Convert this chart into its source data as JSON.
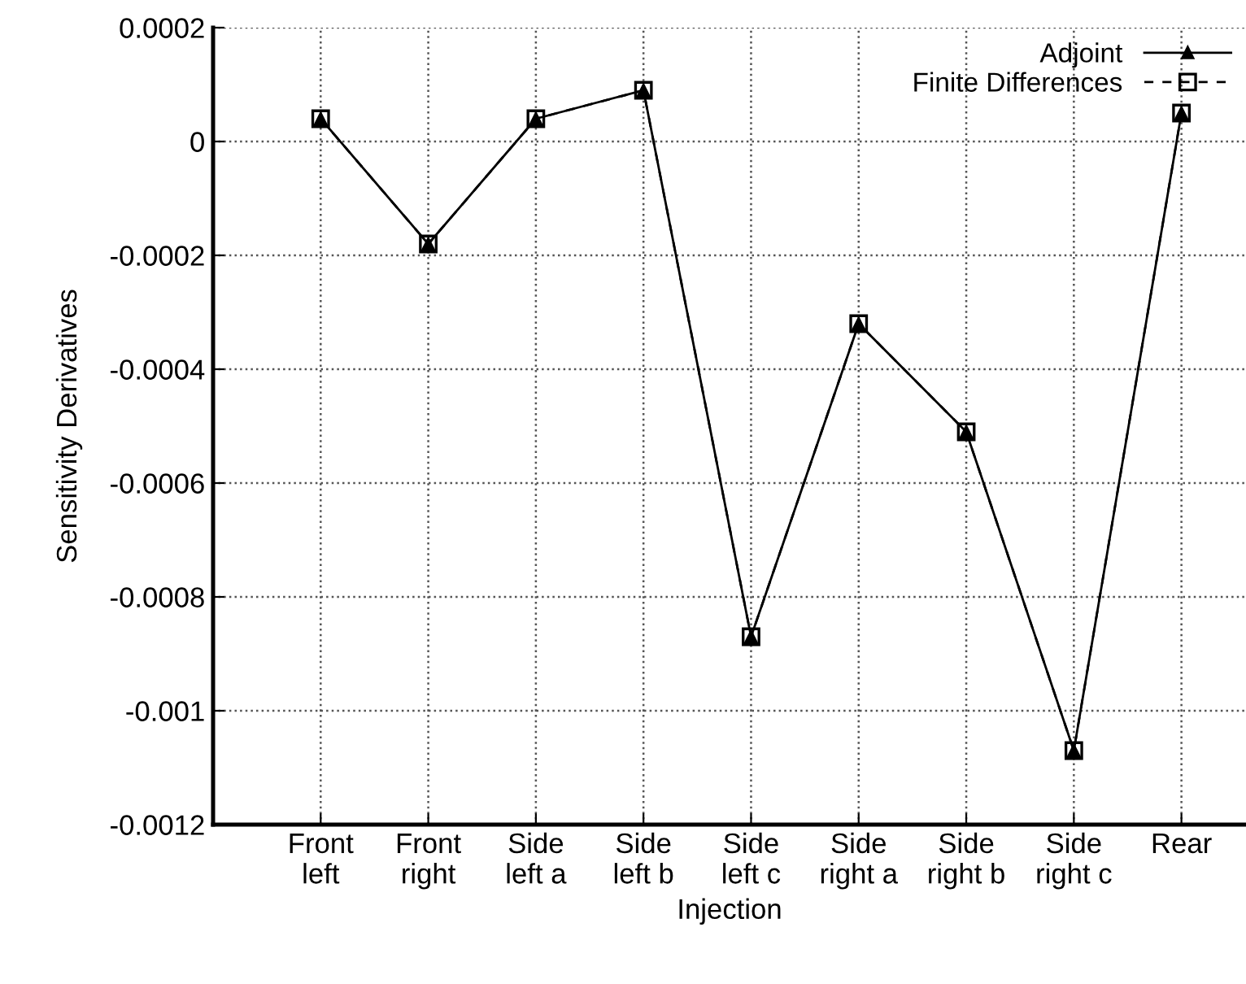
{
  "chart_data": {
    "type": "line",
    "xlabel": "Injection",
    "ylabel": "Sensitivity Derivatives",
    "categories": [
      "Front\nleft",
      "Front\nright",
      "Side\nleft a",
      "Side\nleft b",
      "Side\nleft c",
      "Side\nright a",
      "Side\nright b",
      "Side\nright c",
      "Rear"
    ],
    "series": [
      {
        "name": "Adjoint",
        "color": "#000000",
        "marker": "triangle",
        "line_style": "solid",
        "values": [
          4e-05,
          -0.00018,
          4e-05,
          9e-05,
          -0.00087,
          -0.00032,
          -0.00051,
          -0.00107,
          5e-05
        ]
      },
      {
        "name": "Finite Differences",
        "color": "#000000",
        "marker": "square",
        "line_style": "dashed",
        "values": [
          4e-05,
          -0.00018,
          4e-05,
          9e-05,
          -0.00087,
          -0.00032,
          -0.00051,
          -0.00107,
          5e-05
        ]
      }
    ],
    "ylim": [
      -0.0012,
      0.0002
    ],
    "yticks": [
      -0.0012,
      -0.001,
      -0.0008,
      -0.0006,
      -0.0004,
      -0.0002,
      0,
      0.0002
    ],
    "grid": true,
    "legend": "top right"
  }
}
